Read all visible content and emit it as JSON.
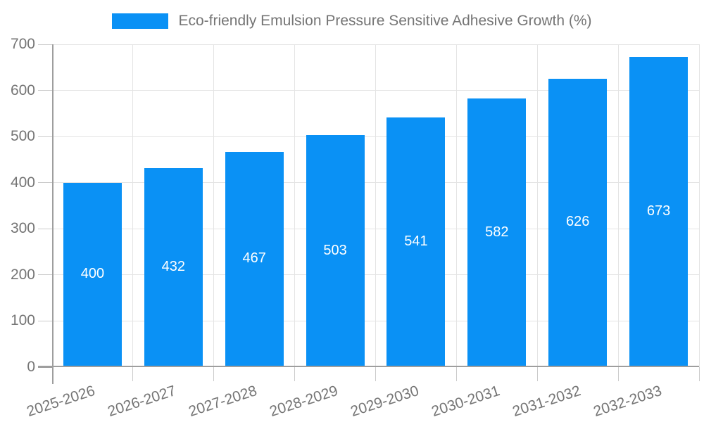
{
  "chart_data": {
    "type": "bar",
    "title": "Eco-friendly Emulsion Pressure Sensitive Adhesive Growth (%)",
    "legend_entries": [
      "Eco-friendly Emulsion Pressure Sensitive Adhesive Growth (%)"
    ],
    "legend_position": "top-center",
    "categories": [
      "2025-2026",
      "2026-2027",
      "2027-2028",
      "2028-2029",
      "2029-2030",
      "2030-2031",
      "2031-2032",
      "2032-2033"
    ],
    "series": [
      {
        "name": "Eco-friendly Emulsion Pressure Sensitive Adhesive Growth (%)",
        "values": [
          400,
          432,
          467,
          503,
          541,
          582,
          626,
          673
        ]
      }
    ],
    "data_labels": [
      "400",
      "432",
      "467",
      "503",
      "541",
      "582",
      "626",
      "673"
    ],
    "xlabel": "",
    "ylabel": "",
    "ylim": [
      0,
      700
    ],
    "ytick_step": 100,
    "yticks": [
      "0",
      "100",
      "200",
      "300",
      "400",
      "500",
      "600",
      "700"
    ],
    "grid": true,
    "x_label_rotation_deg": -18,
    "colors": {
      "bar": "#0a91f5",
      "axis_line": "#9e9e9e",
      "gridline": "#e4e4e4",
      "tick": "#cbcbcb",
      "axis_text": "#757575",
      "value_label": "#ffffff",
      "background": "#ffffff"
    }
  }
}
